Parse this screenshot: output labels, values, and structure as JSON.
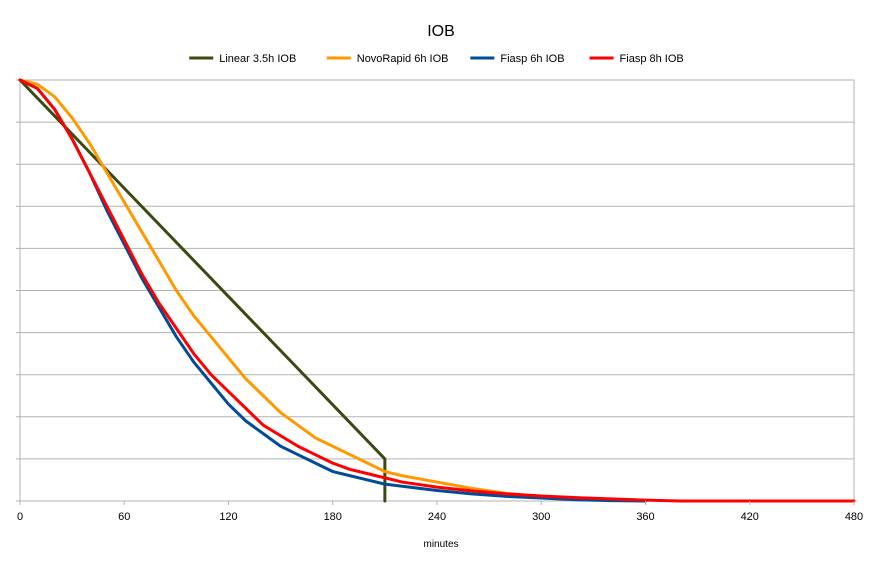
{
  "chart_data": {
    "type": "line",
    "title": "IOB",
    "xlabel": "minutes",
    "ylabel": "",
    "xlim": [
      0,
      480
    ],
    "ylim": [
      0,
      1
    ],
    "x_ticks": [
      "0",
      "60",
      "120",
      "180",
      "240",
      "300",
      "360",
      "420",
      "480"
    ],
    "y_gridlines": 10,
    "grid": true,
    "legend_position": "top",
    "series": [
      {
        "name": "Linear 3.5h IOB",
        "color": "#3b4a10",
        "points": [
          [
            0,
            1.0
          ],
          [
            210,
            0.1
          ],
          [
            210,
            0.0
          ]
        ]
      },
      {
        "name": "NovoRapid 6h IOB",
        "color": "#ff9900",
        "points": [
          [
            0,
            1.0
          ],
          [
            10,
            0.99
          ],
          [
            20,
            0.96
          ],
          [
            30,
            0.91
          ],
          [
            40,
            0.85
          ],
          [
            50,
            0.78
          ],
          [
            60,
            0.71
          ],
          [
            70,
            0.64
          ],
          [
            80,
            0.57
          ],
          [
            90,
            0.5
          ],
          [
            100,
            0.44
          ],
          [
            110,
            0.39
          ],
          [
            120,
            0.34
          ],
          [
            130,
            0.29
          ],
          [
            140,
            0.25
          ],
          [
            150,
            0.21
          ],
          [
            160,
            0.18
          ],
          [
            170,
            0.15
          ],
          [
            180,
            0.13
          ],
          [
            190,
            0.11
          ],
          [
            200,
            0.09
          ],
          [
            210,
            0.07
          ],
          [
            220,
            0.06
          ],
          [
            240,
            0.045
          ],
          [
            260,
            0.03
          ],
          [
            280,
            0.018
          ],
          [
            300,
            0.01
          ],
          [
            320,
            0.005
          ],
          [
            340,
            0.002
          ],
          [
            360,
            0.0
          ]
        ]
      },
      {
        "name": "Fiasp 6h IOB",
        "color": "#004c97",
        "points": [
          [
            0,
            1.0
          ],
          [
            10,
            0.98
          ],
          [
            20,
            0.93
          ],
          [
            30,
            0.86
          ],
          [
            40,
            0.78
          ],
          [
            50,
            0.69
          ],
          [
            60,
            0.61
          ],
          [
            70,
            0.53
          ],
          [
            80,
            0.46
          ],
          [
            90,
            0.39
          ],
          [
            100,
            0.33
          ],
          [
            110,
            0.28
          ],
          [
            120,
            0.23
          ],
          [
            130,
            0.19
          ],
          [
            140,
            0.16
          ],
          [
            150,
            0.13
          ],
          [
            160,
            0.11
          ],
          [
            170,
            0.09
          ],
          [
            180,
            0.07
          ],
          [
            190,
            0.06
          ],
          [
            200,
            0.05
          ],
          [
            210,
            0.04
          ],
          [
            220,
            0.035
          ],
          [
            240,
            0.025
          ],
          [
            260,
            0.017
          ],
          [
            280,
            0.011
          ],
          [
            300,
            0.007
          ],
          [
            320,
            0.003
          ],
          [
            340,
            0.001
          ],
          [
            360,
            0.0
          ]
        ]
      },
      {
        "name": "Fiasp 8h IOB",
        "color": "#ff0000",
        "points": [
          [
            0,
            1.0
          ],
          [
            10,
            0.98
          ],
          [
            20,
            0.93
          ],
          [
            30,
            0.86
          ],
          [
            40,
            0.78
          ],
          [
            50,
            0.7
          ],
          [
            60,
            0.62
          ],
          [
            70,
            0.54
          ],
          [
            80,
            0.47
          ],
          [
            90,
            0.41
          ],
          [
            100,
            0.35
          ],
          [
            110,
            0.3
          ],
          [
            120,
            0.26
          ],
          [
            130,
            0.22
          ],
          [
            140,
            0.18
          ],
          [
            150,
            0.155
          ],
          [
            160,
            0.13
          ],
          [
            170,
            0.11
          ],
          [
            180,
            0.09
          ],
          [
            190,
            0.075
          ],
          [
            200,
            0.065
          ],
          [
            210,
            0.055
          ],
          [
            220,
            0.045
          ],
          [
            240,
            0.033
          ],
          [
            260,
            0.024
          ],
          [
            280,
            0.017
          ],
          [
            300,
            0.012
          ],
          [
            320,
            0.008
          ],
          [
            340,
            0.005
          ],
          [
            360,
            0.002
          ],
          [
            380,
            0.0
          ],
          [
            420,
            0.0
          ],
          [
            480,
            0.0
          ]
        ]
      }
    ]
  }
}
